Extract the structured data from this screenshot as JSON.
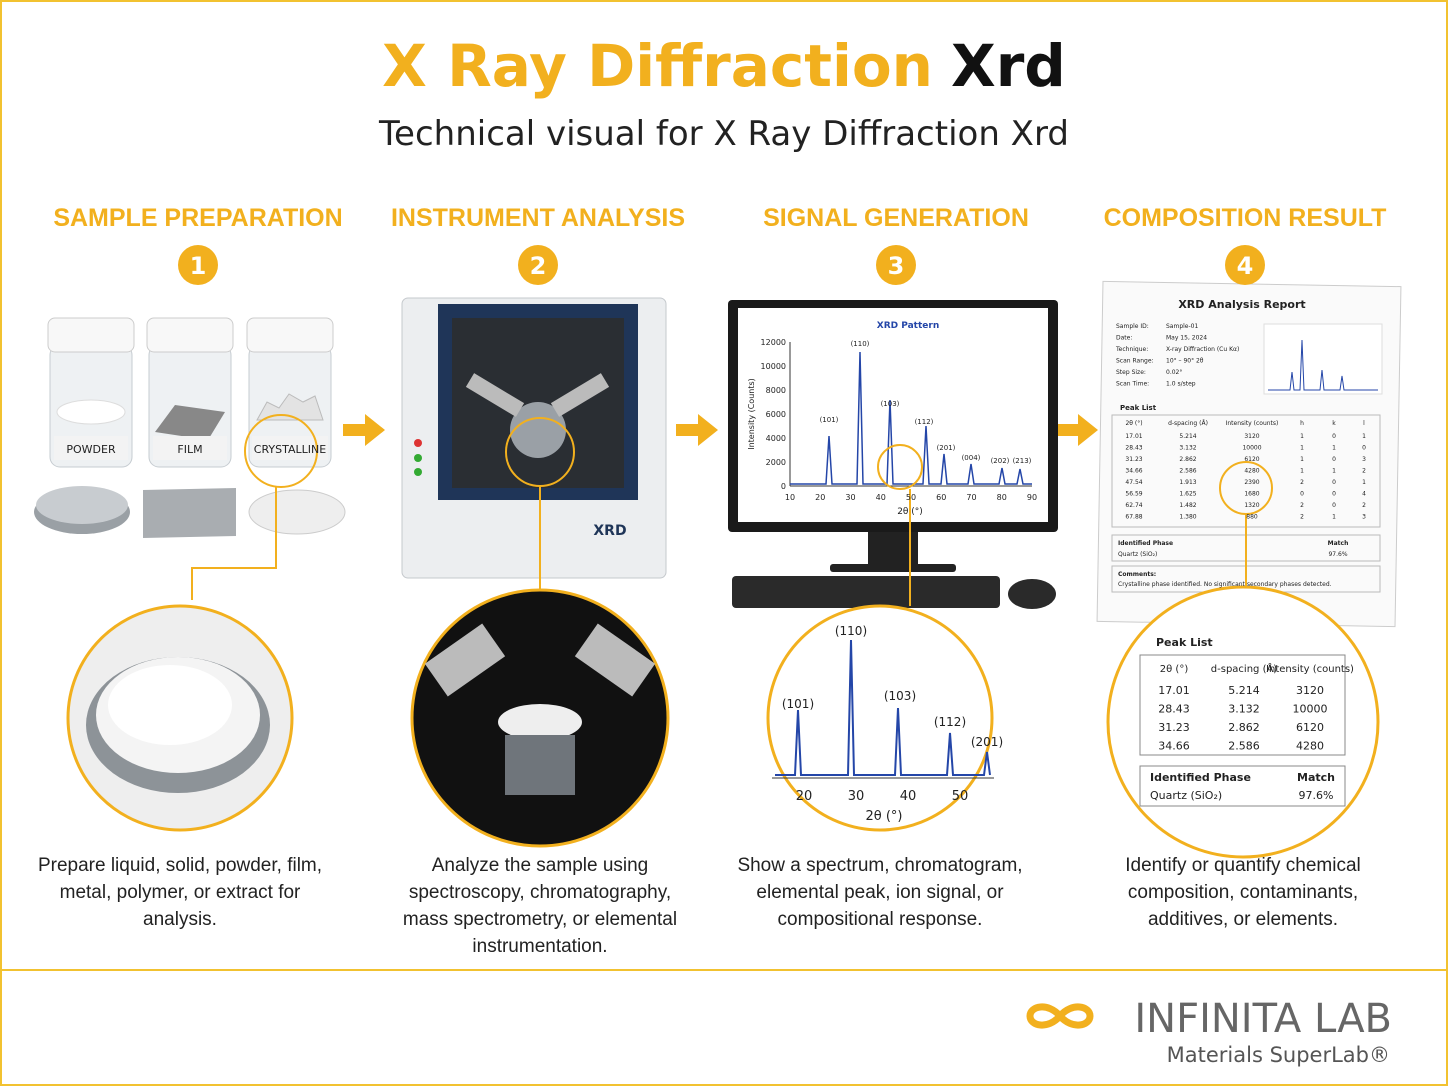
{
  "header": {
    "title_main": "X Ray Diffraction",
    "title_accent": "Xrd",
    "subtitle": "Technical visual for X Ray Diffraction Xrd"
  },
  "steps": [
    {
      "heading": "SAMPLE PREPARATION",
      "number": "1",
      "description": "Prepare liquid, solid, powder, film, metal, polymer, or extract for analysis.",
      "labels": [
        "POWDER",
        "FILM",
        "CRYSTALLINE"
      ]
    },
    {
      "heading": "INSTRUMENT ANALYSIS",
      "number": "2",
      "description": "Analyze the sample using spectroscopy, chromatography, mass spectrometry, or elemental instrumentation.",
      "labels": [
        "XRD"
      ]
    },
    {
      "heading": "SIGNAL GENERATION",
      "number": "3",
      "description": "Show a spectrum, chromatogram, elemental peak, ion signal, or compositional response.",
      "pattern": {
        "title": "XRD Pattern",
        "y_label": "Intensity (Counts)",
        "x_label": "2θ (°)",
        "yticks": [
          "0",
          "2000",
          "4000",
          "6000",
          "8000",
          "10000",
          "12000"
        ],
        "xticks": [
          "10",
          "20",
          "30",
          "40",
          "50",
          "60",
          "70",
          "80",
          "90"
        ],
        "peaks": [
          "(101)",
          "(110)",
          "(103)",
          "(112)",
          "(201)",
          "(004)",
          "(202)",
          "(213)"
        ]
      },
      "zoom": {
        "peaks": [
          "(101)",
          "(110)",
          "(103)",
          "(112)",
          "(201)"
        ],
        "xticks": [
          "20",
          "30",
          "40",
          "50"
        ],
        "x_label": "2θ (°)"
      }
    },
    {
      "heading": "COMPOSITION RESULT",
      "number": "4",
      "description": "Identify or quantify chemical composition, contaminants, additives, or elements.",
      "report": {
        "title": "XRD Analysis Report",
        "meta": [
          [
            "Sample ID:",
            "Sample-01"
          ],
          [
            "Date:",
            "May 15, 2024"
          ],
          [
            "Technique:",
            "X-ray Diffraction (Cu Kα)"
          ],
          [
            "Scan Range:",
            "10° – 90° 2θ"
          ],
          [
            "Step Size:",
            "0.02°"
          ],
          [
            "Scan Time:",
            "1.0 s/step"
          ]
        ],
        "peak_list_title": "Peak List",
        "columns": [
          "2θ (°)",
          "d-spacing (Å)",
          "Intensity (counts)",
          "h",
          "k",
          "l"
        ],
        "rows": [
          [
            "17.01",
            "5.214",
            "3120",
            "1",
            "0",
            "1"
          ],
          [
            "28.43",
            "3.132",
            "10000",
            "1",
            "1",
            "0"
          ],
          [
            "31.23",
            "2.862",
            "6120",
            "1",
            "0",
            "3"
          ],
          [
            "34.66",
            "2.586",
            "4280",
            "1",
            "1",
            "2"
          ],
          [
            "47.54",
            "1.913",
            "2390",
            "2",
            "0",
            "1"
          ],
          [
            "56.59",
            "1.625",
            "1680",
            "0",
            "0",
            "4"
          ],
          [
            "62.74",
            "1.482",
            "1320",
            "2",
            "0",
            "2"
          ],
          [
            "67.88",
            "1.380",
            "880",
            "2",
            "1",
            "3"
          ]
        ],
        "phase_header": [
          "Identified Phase",
          "Match"
        ],
        "phase": [
          "Quartz (SiO₂)",
          "97.6%"
        ],
        "comments_title": "Comments:",
        "comments": "Crystalline phase identified. No significant secondary phases detected."
      },
      "zoom": {
        "title": "Peak List",
        "columns": [
          "2θ (°)",
          "d-spacing (Å)",
          "Intensity (counts)"
        ],
        "rows": [
          [
            "17.01",
            "5.214",
            "3120"
          ],
          [
            "28.43",
            "3.132",
            "10000"
          ],
          [
            "31.23",
            "2.862",
            "6120"
          ],
          [
            "34.66",
            "2.586",
            "4280"
          ]
        ],
        "phase_header": [
          "Identified Phase",
          "Match"
        ],
        "phase": [
          "Quartz (SiO₂)",
          "97.6%"
        ]
      }
    }
  ],
  "footer": {
    "brand": "INFINITA LAB",
    "tagline": "Materials SuperLab®"
  }
}
